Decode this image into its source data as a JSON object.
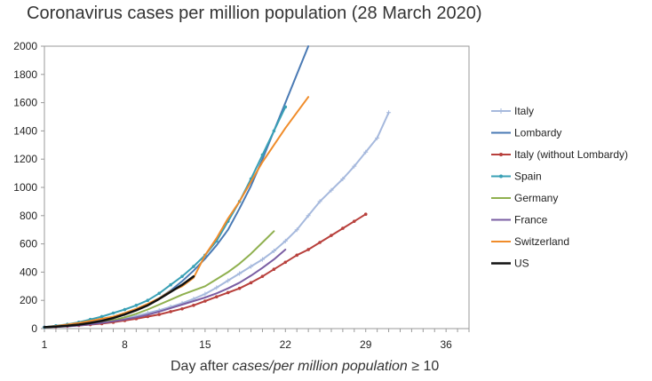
{
  "chart_data": {
    "type": "line",
    "title": "Coronavirus cases per million population (28 March 2020)",
    "xlabel": {
      "prefix": "Day after ",
      "italic": "cases/per million population",
      "suffix": " ≥ 10"
    },
    "ylabel": "",
    "xlim": [
      1,
      38
    ],
    "ylim": [
      0,
      2000
    ],
    "xticks": [
      1,
      8,
      15,
      22,
      29,
      36
    ],
    "yticks": [
      0,
      200,
      400,
      600,
      800,
      1000,
      1200,
      1400,
      1600,
      1800,
      2000
    ],
    "grid": false,
    "legend_position": "right",
    "series": [
      {
        "name": "Italy",
        "color": "#a6b9dd",
        "marker": "plus",
        "x": [
          1,
          2,
          3,
          4,
          5,
          6,
          7,
          8,
          9,
          10,
          11,
          12,
          13,
          14,
          15,
          16,
          17,
          18,
          19,
          20,
          21,
          22,
          23,
          24,
          25,
          26,
          27,
          28,
          29,
          30,
          31
        ],
        "y": [
          10,
          15,
          20,
          28,
          38,
          50,
          62,
          75,
          90,
          110,
          130,
          155,
          180,
          210,
          245,
          290,
          340,
          390,
          440,
          490,
          550,
          620,
          700,
          800,
          900,
          980,
          1060,
          1150,
          1250,
          1350,
          1530
        ]
      },
      {
        "name": "Lombardy",
        "color": "#4a7ab4",
        "marker": "none",
        "x": [
          1,
          2,
          3,
          4,
          5,
          6,
          7,
          8,
          9,
          10,
          11,
          12,
          13,
          14,
          15,
          16,
          17,
          18,
          19,
          20,
          21,
          22,
          23,
          24
        ],
        "y": [
          10,
          15,
          22,
          32,
          45,
          60,
          80,
          105,
          135,
          170,
          215,
          270,
          335,
          410,
          495,
          590,
          700,
          850,
          1010,
          1200,
          1400,
          1600,
          1800,
          2000
        ]
      },
      {
        "name": "Italy (without Lombardy)",
        "color": "#b8403c",
        "marker": "dot",
        "x": [
          1,
          2,
          3,
          4,
          5,
          6,
          7,
          8,
          9,
          10,
          11,
          12,
          13,
          14,
          15,
          16,
          17,
          18,
          19,
          20,
          21,
          22,
          23,
          24,
          25,
          26,
          27,
          28,
          29
        ],
        "y": [
          10,
          13,
          17,
          22,
          28,
          35,
          45,
          57,
          70,
          85,
          100,
          120,
          140,
          165,
          195,
          225,
          255,
          285,
          325,
          370,
          420,
          470,
          520,
          560,
          610,
          660,
          710,
          760,
          810
        ]
      },
      {
        "name": "Spain",
        "color": "#39a0b5",
        "marker": "dot",
        "x": [
          1,
          2,
          3,
          4,
          5,
          6,
          7,
          8,
          9,
          10,
          11,
          12,
          13,
          14,
          15,
          16,
          17,
          18,
          19,
          20,
          21,
          22
        ],
        "y": [
          10,
          20,
          30,
          45,
          65,
          85,
          110,
          135,
          165,
          200,
          250,
          310,
          370,
          440,
          520,
          620,
          760,
          900,
          1060,
          1230,
          1400,
          1570
        ]
      },
      {
        "name": "Germany",
        "color": "#8fb04f",
        "marker": "none",
        "x": [
          1,
          2,
          3,
          4,
          5,
          6,
          7,
          8,
          9,
          10,
          11,
          12,
          13,
          14,
          15,
          16,
          17,
          18,
          19,
          20,
          21
        ],
        "y": [
          10,
          13,
          18,
          25,
          35,
          45,
          60,
          80,
          105,
          135,
          170,
          205,
          240,
          270,
          300,
          350,
          400,
          460,
          530,
          610,
          690
        ]
      },
      {
        "name": "France",
        "color": "#7a5ea3",
        "marker": "none",
        "x": [
          1,
          2,
          3,
          4,
          5,
          6,
          7,
          8,
          9,
          10,
          11,
          12,
          13,
          14,
          15,
          16,
          17,
          18,
          19,
          20,
          21,
          22
        ],
        "y": [
          10,
          12,
          16,
          22,
          30,
          40,
          52,
          65,
          80,
          98,
          120,
          145,
          170,
          195,
          220,
          250,
          285,
          325,
          375,
          430,
          490,
          560
        ]
      },
      {
        "name": "Switzerland",
        "color": "#f08c2a",
        "marker": "none",
        "x": [
          1,
          2,
          3,
          4,
          5,
          6,
          7,
          8,
          9,
          10,
          11,
          12,
          13,
          14,
          15,
          16,
          17,
          18,
          19,
          20,
          21,
          22,
          23,
          24
        ],
        "y": [
          10,
          18,
          28,
          40,
          55,
          70,
          85,
          110,
          140,
          175,
          215,
          265,
          300,
          360,
          520,
          640,
          780,
          900,
          1040,
          1180,
          1300,
          1420,
          1530,
          1640
        ]
      },
      {
        "name": "US",
        "color": "#111111",
        "marker": "none",
        "x": [
          1,
          2,
          3,
          4,
          5,
          6,
          7,
          8,
          9,
          10,
          11,
          12,
          13,
          14
        ],
        "y": [
          10,
          14,
          20,
          28,
          40,
          55,
          75,
          100,
          130,
          165,
          210,
          260,
          310,
          370
        ]
      }
    ]
  }
}
